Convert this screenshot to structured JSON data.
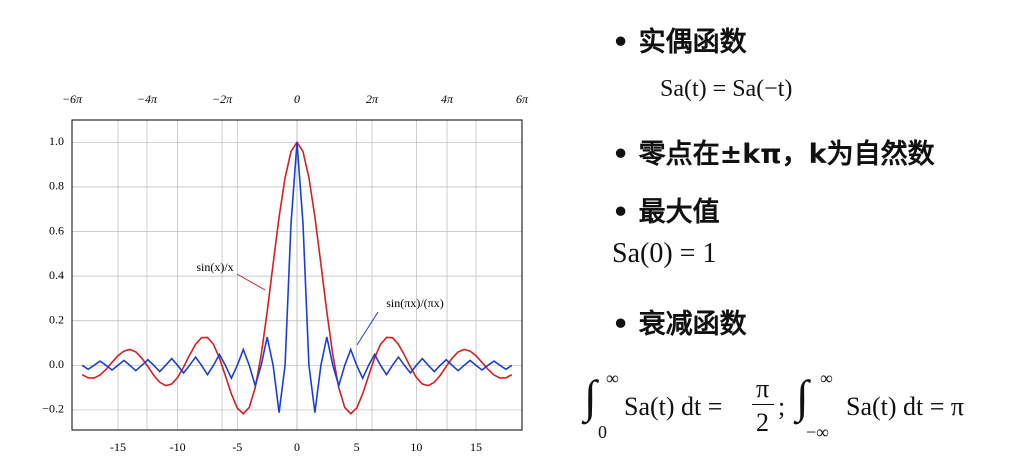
{
  "chart_data": {
    "type": "line",
    "x": [
      -18,
      -17.5,
      -17,
      -16.5,
      -16,
      -15.5,
      -15,
      -14.5,
      -14,
      -13.5,
      -13,
      -12.5,
      -12,
      -11.5,
      -11,
      -10.5,
      -10,
      -9.5,
      -9,
      -8.5,
      -8,
      -7.5,
      -7,
      -6.5,
      -6,
      -5.5,
      -5,
      -4.5,
      -4,
      -3.5,
      -3,
      -2.5,
      -2,
      -1.5,
      -1,
      -0.5,
      0,
      0.5,
      1,
      1.5,
      2,
      2.5,
      3,
      3.5,
      4,
      4.5,
      5,
      5.5,
      6,
      6.5,
      7,
      7.5,
      8,
      8.5,
      9,
      9.5,
      10,
      10.5,
      11,
      11.5,
      12,
      12.5,
      13,
      13.5,
      14,
      14.5,
      15,
      15.5,
      16,
      16.5,
      17,
      17.5,
      18
    ],
    "series": [
      {
        "name": "sin(x)/x",
        "color": "#d42020",
        "values": [
          -0.042,
          -0.056,
          -0.057,
          -0.043,
          -0.018,
          0.013,
          0.043,
          0.064,
          0.071,
          0.06,
          0.032,
          -0.005,
          -0.045,
          -0.076,
          -0.091,
          -0.084,
          -0.054,
          -0.008,
          0.046,
          0.094,
          0.124,
          0.125,
          0.094,
          0.033,
          -0.047,
          -0.128,
          -0.192,
          -0.217,
          -0.189,
          -0.1,
          0.047,
          0.239,
          0.455,
          0.665,
          0.841,
          0.959,
          1,
          0.959,
          0.841,
          0.665,
          0.455,
          0.239,
          0.047,
          -0.1,
          -0.189,
          -0.217,
          -0.192,
          -0.128,
          -0.047,
          0.033,
          0.094,
          0.125,
          0.124,
          0.094,
          0.046,
          -0.008,
          -0.054,
          -0.084,
          -0.091,
          -0.076,
          -0.045,
          -0.005,
          0.032,
          0.06,
          0.071,
          0.064,
          0.043,
          0.013,
          -0.018,
          -0.043,
          -0.057,
          -0.056,
          -0.042
        ]
      },
      {
        "name": "sin(πx)/(πx)",
        "color": "#1a3fd6",
        "values": [
          0,
          -0.018,
          0,
          0.019,
          0,
          -0.021,
          0,
          0.022,
          0,
          -0.024,
          0,
          0.025,
          0,
          -0.028,
          0,
          0.03,
          0,
          -0.034,
          0,
          0.037,
          0,
          -0.042,
          0,
          0.049,
          0,
          -0.058,
          0,
          0.071,
          0,
          -0.091,
          0,
          0.127,
          0,
          -0.212,
          0,
          0.637,
          1,
          0.637,
          0,
          -0.212,
          0,
          0.127,
          0,
          -0.091,
          0,
          0.071,
          0,
          -0.058,
          0,
          0.049,
          0,
          -0.042,
          0,
          0.037,
          0,
          -0.034,
          0,
          0.03,
          0,
          -0.028,
          0,
          0.025,
          0,
          -0.024,
          0,
          0.022,
          0,
          -0.021,
          0,
          0.019,
          0,
          -0.018,
          0
        ]
      }
    ],
    "xlim": [
      -18.85,
      18.85
    ],
    "ylim": [
      -0.29,
      1.1
    ],
    "xticks": [
      -15,
      -10,
      -5,
      0,
      5,
      10,
      15
    ],
    "yticks": [
      {
        "value": -0.2,
        "label": "−0.2"
      },
      {
        "value": 0,
        "label": "0.0"
      },
      {
        "value": 0.2,
        "label": "0.2"
      },
      {
        "value": 0.4,
        "label": "0.4"
      },
      {
        "value": 0.6,
        "label": "0.6"
      },
      {
        "value": 0.8,
        "label": "0.8"
      },
      {
        "value": 1,
        "label": "1.0"
      }
    ],
    "x2ticks": [
      {
        "value": -18.85,
        "label": "−6π"
      },
      {
        "value": -12.57,
        "label": "−4π"
      },
      {
        "value": -6.28,
        "label": "−2π"
      },
      0,
      {
        "value": 6.28,
        "label": "2π"
      },
      {
        "value": 12.57,
        "label": "4π"
      },
      {
        "value": 18.85,
        "label": "6π"
      }
    ],
    "grid": true
  },
  "slide": {
    "bullets": [
      {
        "text": "实偶函数",
        "formula": "Sa(t) = Sa(−t)"
      },
      {
        "text": "零点在±kπ，k为自然数"
      },
      {
        "text": "最大值",
        "formula": "Sa(0) = 1"
      },
      {
        "text": "衰减函数"
      }
    ],
    "integral": {
      "sign": "∫",
      "lower1": "0",
      "upper": "∞",
      "body1": "Sa(t) dt =",
      "num": "π",
      "den": "2",
      "sep": ";",
      "lower2": "−∞",
      "body2": "Sa(t) dt = π"
    }
  }
}
